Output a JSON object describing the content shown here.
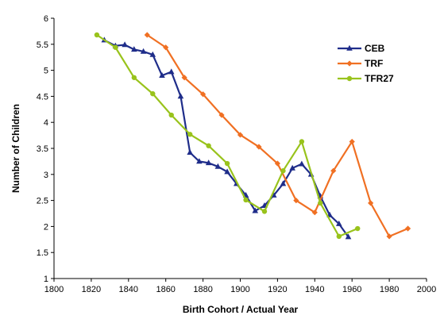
{
  "chart_data": {
    "type": "line",
    "title": "",
    "xlabel": "Birth Cohort / Actual Year",
    "ylabel": "Number of Children",
    "xlim": [
      1800,
      2000
    ],
    "ylim": [
      1,
      6
    ],
    "xticks": [
      1800,
      1820,
      1840,
      1860,
      1880,
      1900,
      1920,
      1940,
      1960,
      1980,
      2000
    ],
    "yticks": [
      1,
      1.5,
      2,
      2.5,
      3,
      3.5,
      4,
      4.5,
      5,
      5.5,
      6
    ],
    "xtick_labels": [
      "1800",
      "1820",
      "1840",
      "1860",
      "1880",
      "1900",
      "1920",
      "1940",
      "1960",
      "1980",
      "2000"
    ],
    "ytick_labels": [
      "1",
      "1.5",
      "2",
      "2.5",
      "3",
      "3.5",
      "4",
      "4.5",
      "5",
      "5.5",
      "6"
    ],
    "grid": false,
    "legend_position": "top-right",
    "series": [
      {
        "name": "CEB",
        "color": "#1f2d8a",
        "marker": "triangle",
        "points": [
          [
            1827,
            5.58
          ],
          [
            1833,
            5.47
          ],
          [
            1838,
            5.49
          ],
          [
            1843,
            5.4
          ],
          [
            1848,
            5.36
          ],
          [
            1853,
            5.3
          ],
          [
            1858,
            4.9
          ],
          [
            1863,
            4.97
          ],
          [
            1868,
            4.5
          ],
          [
            1873,
            3.42
          ],
          [
            1878,
            3.25
          ],
          [
            1883,
            3.22
          ],
          [
            1888,
            3.15
          ],
          [
            1893,
            3.05
          ],
          [
            1898,
            2.82
          ],
          [
            1903,
            2.6
          ],
          [
            1908,
            2.3
          ],
          [
            1913,
            2.4
          ],
          [
            1918,
            2.6
          ],
          [
            1923,
            2.82
          ],
          [
            1928,
            3.12
          ],
          [
            1933,
            3.2
          ],
          [
            1938,
            3.0
          ],
          [
            1943,
            2.58
          ],
          [
            1948,
            2.22
          ],
          [
            1953,
            2.05
          ],
          [
            1958,
            1.8
          ]
        ]
      },
      {
        "name": "TRF",
        "color": "#f07023",
        "marker": "diamond",
        "points": [
          [
            1850,
            5.68
          ],
          [
            1860,
            5.44
          ],
          [
            1870,
            4.86
          ],
          [
            1880,
            4.54
          ],
          [
            1890,
            4.14
          ],
          [
            1900,
            3.76
          ],
          [
            1910,
            3.53
          ],
          [
            1920,
            3.21
          ],
          [
            1930,
            2.5
          ],
          [
            1940,
            2.27
          ],
          [
            1950,
            3.07
          ],
          [
            1960,
            3.63
          ],
          [
            1970,
            2.45
          ],
          [
            1980,
            1.81
          ],
          [
            1990,
            1.96
          ]
        ]
      },
      {
        "name": "TFR27",
        "color": "#99c31c",
        "marker": "circle",
        "points": [
          [
            1823,
            5.68
          ],
          [
            1833,
            5.44
          ],
          [
            1843,
            4.86
          ],
          [
            1853,
            4.55
          ],
          [
            1863,
            4.14
          ],
          [
            1873,
            3.77
          ],
          [
            1883,
            3.55
          ],
          [
            1893,
            3.21
          ],
          [
            1903,
            2.51
          ],
          [
            1913,
            2.29
          ],
          [
            1923,
            3.07
          ],
          [
            1933,
            3.63
          ],
          [
            1943,
            2.45
          ],
          [
            1953,
            1.81
          ],
          [
            1963,
            1.96
          ]
        ]
      }
    ]
  }
}
